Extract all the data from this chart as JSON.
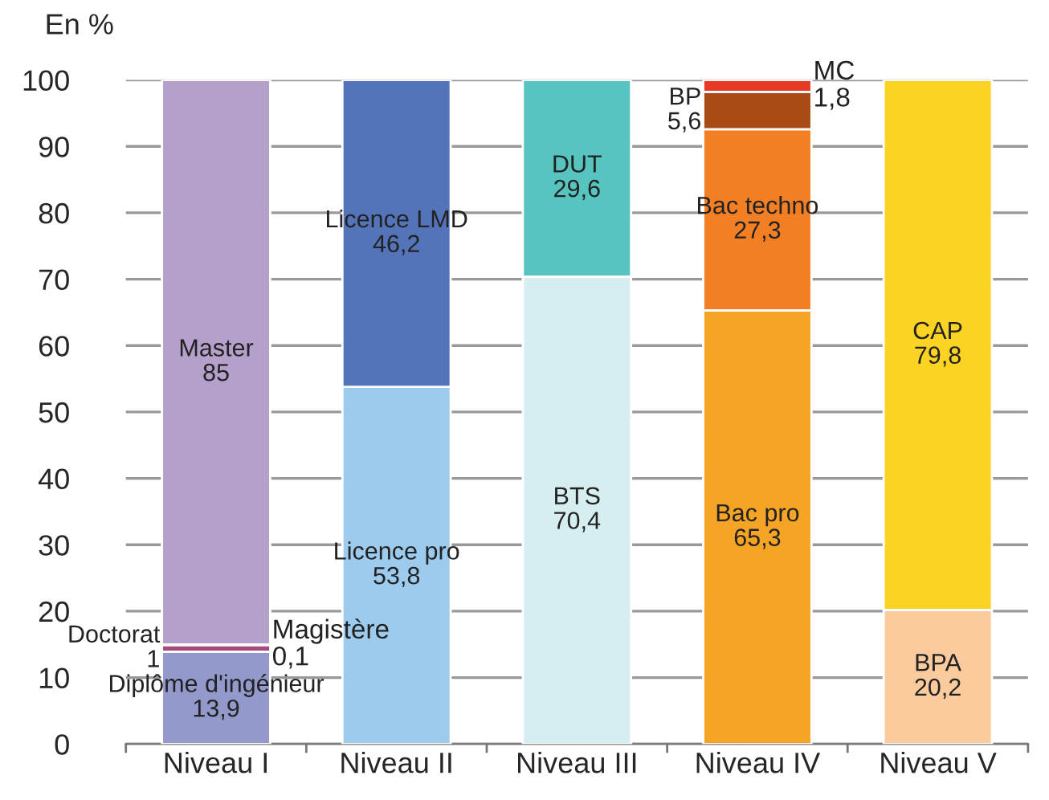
{
  "chart_data": {
    "type": "bar",
    "stacked": true,
    "ylabel": "En %",
    "categories": [
      "Niveau I",
      "Niveau II",
      "Niveau III",
      "Niveau IV",
      "Niveau V"
    ],
    "series": [
      {
        "name": "Diplôme d'ingénieur",
        "color": "#9499cc",
        "values": [
          13.9,
          null,
          null,
          null,
          null
        ],
        "value_labels": [
          "13,9",
          null,
          null,
          null,
          null
        ]
      },
      {
        "name": "Doctorat",
        "color": "#a8497a",
        "values": [
          1,
          null,
          null,
          null,
          null
        ],
        "value_labels": [
          "1",
          null,
          null,
          null,
          null
        ]
      },
      {
        "name": "Magistère",
        "color": "#b59fcb",
        "values": [
          0.1,
          null,
          null,
          null,
          null
        ],
        "value_labels": [
          "0,1",
          null,
          null,
          null,
          null
        ]
      },
      {
        "name": "Master",
        "color": "#b59fcb",
        "values": [
          85,
          null,
          null,
          null,
          null
        ],
        "value_labels": [
          "85",
          null,
          null,
          null,
          null
        ]
      },
      {
        "name": "Licence pro",
        "color": "#9ccbee",
        "values": [
          null,
          53.8,
          null,
          null,
          null
        ],
        "value_labels": [
          null,
          "53,8",
          null,
          null,
          null
        ]
      },
      {
        "name": "Licence LMD",
        "color": "#5474b9",
        "values": [
          null,
          46.2,
          null,
          null,
          null
        ],
        "value_labels": [
          null,
          "46,2",
          null,
          null,
          null
        ]
      },
      {
        "name": "BTS",
        "color": "#d6eef0",
        "values": [
          null,
          null,
          70.4,
          null,
          null
        ],
        "value_labels": [
          null,
          null,
          "70,4",
          null,
          null
        ]
      },
      {
        "name": "DUT",
        "color": "#57c4bf",
        "values": [
          null,
          null,
          29.6,
          null,
          null
        ],
        "value_labels": [
          null,
          null,
          "29,6",
          null,
          null
        ]
      },
      {
        "name": "Bac pro",
        "color": "#f6a426",
        "values": [
          null,
          null,
          null,
          65.3,
          null
        ],
        "value_labels": [
          null,
          null,
          null,
          "65,3",
          null
        ]
      },
      {
        "name": "Bac techno",
        "color": "#f27f24",
        "values": [
          null,
          null,
          null,
          27.3,
          null
        ],
        "value_labels": [
          null,
          null,
          null,
          "27,3",
          null
        ]
      },
      {
        "name": "BP",
        "color": "#a84b17",
        "values": [
          null,
          null,
          null,
          5.6,
          null
        ],
        "value_labels": [
          null,
          null,
          null,
          "5,6",
          null
        ]
      },
      {
        "name": "MC",
        "color": "#e63a25",
        "values": [
          null,
          null,
          null,
          1.8,
          null
        ],
        "value_labels": [
          null,
          null,
          null,
          "1,8",
          null
        ]
      },
      {
        "name": "BPA",
        "color": "#fbcb9d",
        "values": [
          null,
          null,
          null,
          null,
          20.2
        ],
        "value_labels": [
          null,
          null,
          null,
          null,
          "20,2"
        ]
      },
      {
        "name": "CAP",
        "color": "#fcd223",
        "values": [
          null,
          null,
          null,
          null,
          79.8
        ],
        "value_labels": [
          null,
          null,
          null,
          null,
          "79,8"
        ]
      }
    ],
    "ylim": [
      0,
      100
    ],
    "yticks": [
      0,
      10,
      20,
      30,
      40,
      50,
      60,
      70,
      80,
      90,
      100
    ],
    "grid": "y",
    "legend": false
  }
}
